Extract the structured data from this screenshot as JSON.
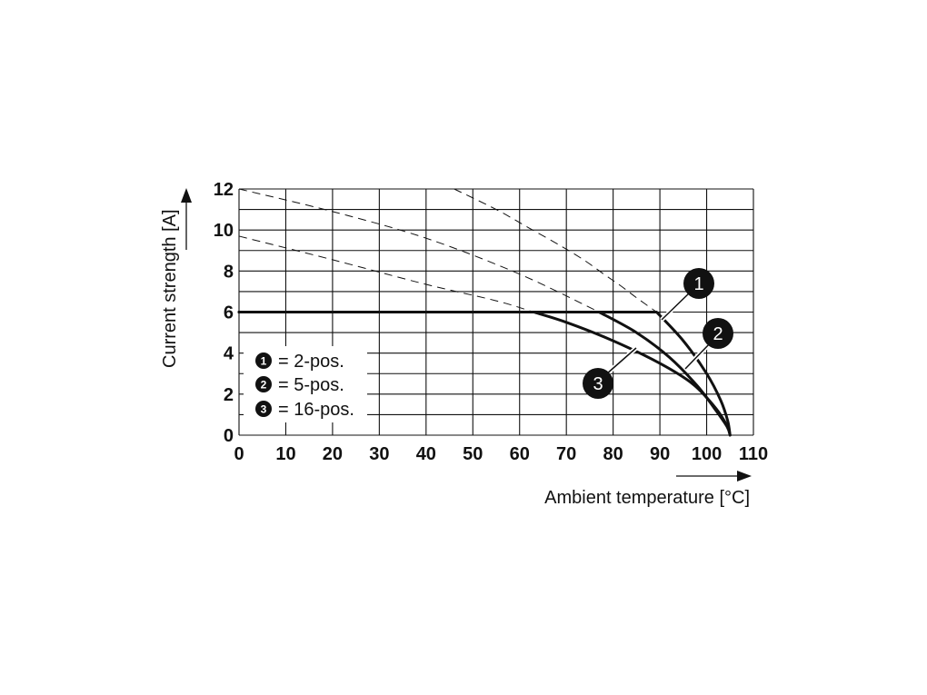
{
  "chart_data": {
    "type": "line",
    "xlabel": "Ambient temperature [°C]",
    "ylabel": "Current strength [A]",
    "xlim": [
      0,
      110
    ],
    "ylim": [
      0,
      12
    ],
    "x_ticks": [
      0,
      10,
      20,
      30,
      40,
      50,
      60,
      70,
      80,
      90,
      100,
      110
    ],
    "y_ticks": [
      0,
      2,
      4,
      6,
      8,
      10,
      12
    ],
    "grid": true,
    "legend_position": "lower-left",
    "legend": [
      {
        "marker": "1",
        "text": "= 2-pos."
      },
      {
        "marker": "2",
        "text": "= 5-pos."
      },
      {
        "marker": "3",
        "text": "= 16-pos."
      }
    ],
    "series": [
      {
        "name": "1",
        "x": [
          0,
          89.3,
          95,
          100,
          103,
          104.5,
          105
        ],
        "y": [
          6,
          6,
          4.6,
          3.0,
          1.7,
          0.7,
          0
        ],
        "dashed_x": [
          46,
          55,
          62,
          69,
          74,
          78,
          81.5,
          85,
          89.3
        ],
        "dashed_y": [
          12,
          11.0,
          10.1,
          9.2,
          8.5,
          7.85,
          7.3,
          6.7,
          6
        ]
      },
      {
        "name": "2",
        "x": [
          0,
          77,
          85,
          92,
          98,
          102,
          104.4,
          105
        ],
        "y": [
          6,
          6,
          5.0,
          3.8,
          2.4,
          1.2,
          0.4,
          0
        ],
        "dashed_x": [
          0,
          20,
          40,
          60,
          77
        ],
        "dashed_y": [
          12,
          10.9,
          9.6,
          7.85,
          6
        ]
      },
      {
        "name": "3",
        "x": [
          0,
          63,
          70,
          80,
          90,
          97,
          102,
          104.5,
          105
        ],
        "y": [
          6,
          6,
          5.5,
          4.6,
          3.5,
          2.5,
          1.3,
          0.4,
          0
        ],
        "dashed_x": [
          0,
          20,
          40,
          55,
          63
        ],
        "dashed_y": [
          9.7,
          8.55,
          7.35,
          6.55,
          6
        ]
      }
    ],
    "callouts": [
      {
        "marker": "1"
      },
      {
        "marker": "2"
      },
      {
        "marker": "3"
      }
    ]
  }
}
